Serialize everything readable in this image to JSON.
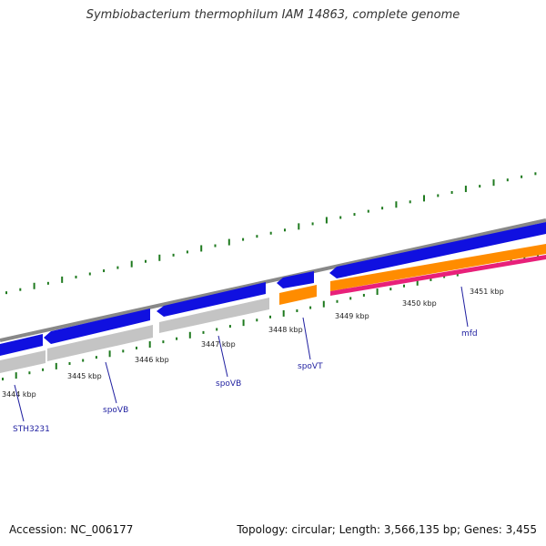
{
  "title": "Symbiobacterium thermophilum IAM 14863, complete genome",
  "footer": {
    "accession": "Accession: NC_006177",
    "summary": "Topology: circular; Length: 3,566,135 bp; Genes: 3,455"
  },
  "colors": {
    "backbone": "#888888",
    "forward_gene": "#1010e0",
    "reverse_gene": "#c4c4c4",
    "orange_track": "#ff8c00",
    "pink_track": "#e8207a",
    "gc_skew_dots": "#1f7a1f",
    "label_line": "#1f1fa0"
  },
  "scale_ticks": [
    {
      "kbp": 3444,
      "label": "3444 kbp"
    },
    {
      "kbp": 3445,
      "label": "3445 kbp"
    },
    {
      "kbp": 3446,
      "label": "3446 kbp"
    },
    {
      "kbp": 3447,
      "label": "3447 kbp"
    },
    {
      "kbp": 3448,
      "label": "3448 kbp"
    },
    {
      "kbp": 3449,
      "label": "3449 kbp"
    },
    {
      "kbp": 3450,
      "label": "3450 kbp"
    },
    {
      "kbp": 3451,
      "label": "3451 kbp"
    }
  ],
  "gene_labels": [
    {
      "name": "STH3231"
    },
    {
      "name": "spoVB"
    },
    {
      "name": "spoVB"
    },
    {
      "name": "spoVT"
    },
    {
      "name": "mfd"
    }
  ]
}
